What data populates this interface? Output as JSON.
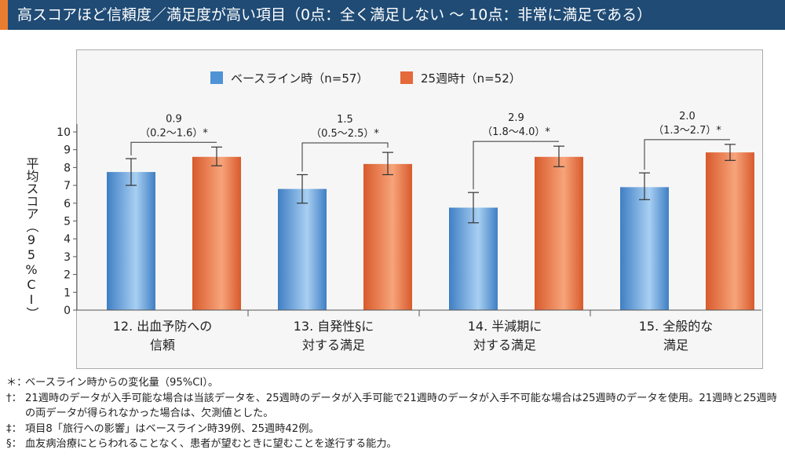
{
  "header": {
    "title": "高スコアほど信頼度／満足度が高い項目（0点：全く満足しない 〜 10点：非常に満足である）",
    "bg_color": "#1f4b75",
    "accent_color": "#e87d2f"
  },
  "chart_data": {
    "type": "bar",
    "ylabel": "平均スコア（95%CI）",
    "ylim": [
      0,
      10
    ],
    "yticks": [
      0,
      1,
      2,
      3,
      4,
      5,
      6,
      7,
      8,
      9,
      10
    ],
    "legend_position": "top",
    "categories": [
      [
        "12. 出血予防への",
        "信頼"
      ],
      [
        "13. 自発性§に",
        "対する満足"
      ],
      [
        "14. 半減期に",
        "対する満足"
      ],
      [
        "15. 全般的な",
        "満足"
      ]
    ],
    "series": [
      {
        "name": "ベースライン時（n=57）",
        "color": "#4f93d6",
        "values": [
          7.75,
          6.8,
          5.75,
          6.9
        ],
        "ci_low": [
          7.0,
          6.0,
          4.9,
          6.2
        ],
        "ci_high": [
          8.5,
          7.6,
          6.6,
          7.7
        ]
      },
      {
        "name": "25週時†（n=52）",
        "color": "#e46a3a",
        "values": [
          8.6,
          8.2,
          8.6,
          8.85
        ],
        "ci_low": [
          8.1,
          7.6,
          8.05,
          8.4
        ],
        "ci_high": [
          9.15,
          8.85,
          9.2,
          9.3
        ]
      }
    ],
    "annotations": [
      {
        "diff": "0.9",
        "ci": "（0.2〜1.6）*"
      },
      {
        "diff": "1.5",
        "ci": "（0.5〜2.5）*"
      },
      {
        "diff": "2.9",
        "ci": "（1.8〜4.0）*"
      },
      {
        "diff": "2.0",
        "ci": "（1.3〜2.7）*"
      }
    ]
  },
  "footnotes": [
    {
      "mark": "＊：",
      "text": "ベースライン時からの変化量（95%CI）。"
    },
    {
      "mark": "†：",
      "text": "21週時のデータが入手可能な場合は当該データを、25週時のデータが入手可能で21週時のデータが入手不可能な場合は25週時のデータを使用。21週時と25週時の両データが得られなかった場合は、欠測値とした。"
    },
    {
      "mark": "‡：",
      "text": "項目8「旅行への影響」はベースライン時39例、25週時42例。"
    },
    {
      "mark": "§：",
      "text": "血友病治療にとらわれることなく、患者が望むときに望むことを遂行する能力。"
    }
  ]
}
